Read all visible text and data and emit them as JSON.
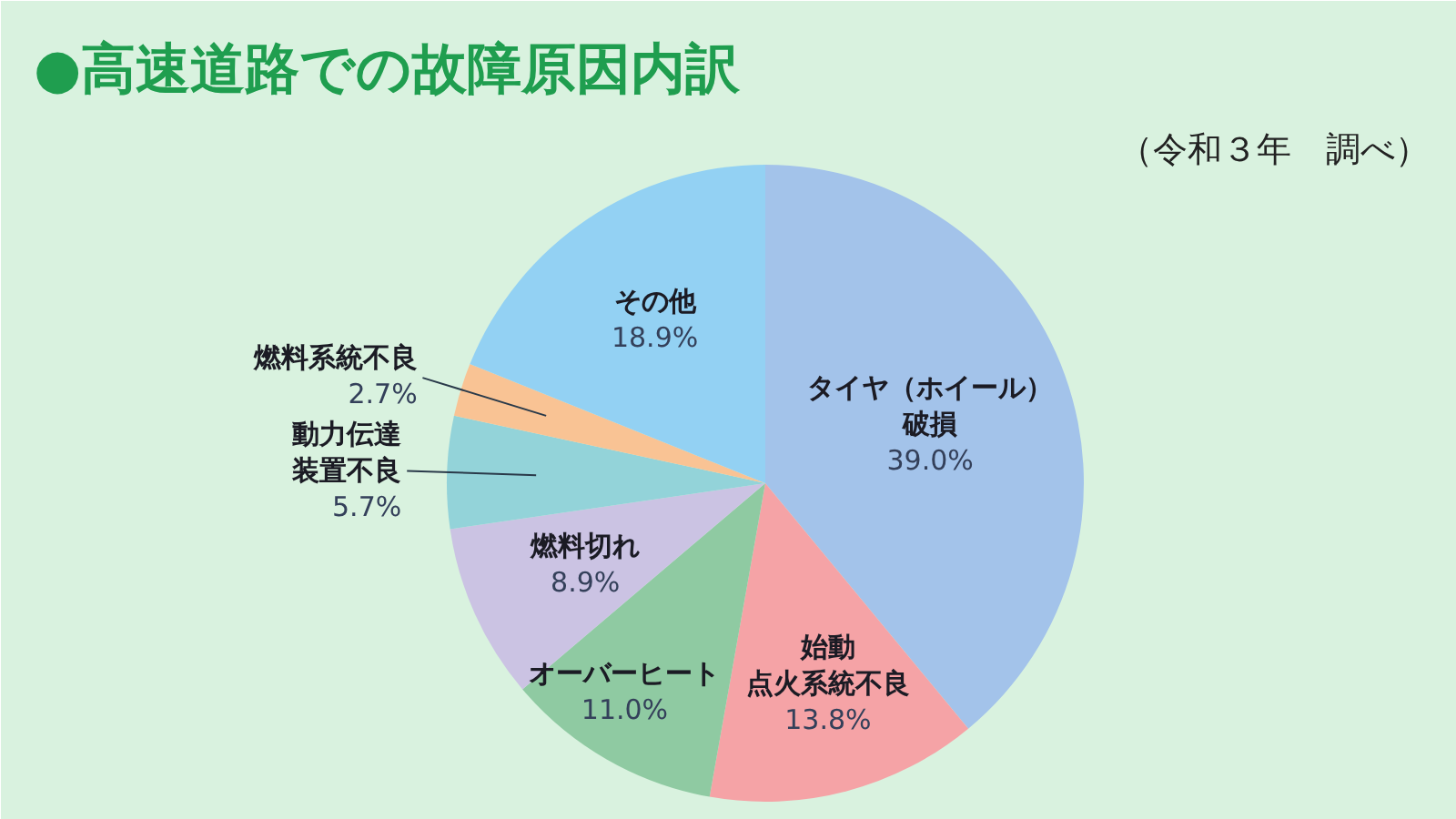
{
  "chart_data": {
    "type": "pie",
    "title": "●高速道路での故障原因内訳",
    "annotations": [
      "（令和３年　調べ）"
    ],
    "categories": [
      "タイヤ（ホイール）破損",
      "始動点火系統不良",
      "オーバーヒート",
      "燃料切れ",
      "動力伝達装置不良",
      "燃料系統不良",
      "その他"
    ],
    "values": [
      39.0,
      13.8,
      11.0,
      8.9,
      5.7,
      2.7,
      18.9
    ],
    "value_labels": [
      "39.0%",
      "13.8%",
      "11.0%",
      "8.9%",
      "5.7%",
      "2.7%",
      "18.9%"
    ],
    "colors": [
      "#a3c3ea",
      "#f5a3a6",
      "#8fcaa2",
      "#cbc3e3",
      "#93d3d9",
      "#f9c394",
      "#93d1f3"
    ]
  }
}
